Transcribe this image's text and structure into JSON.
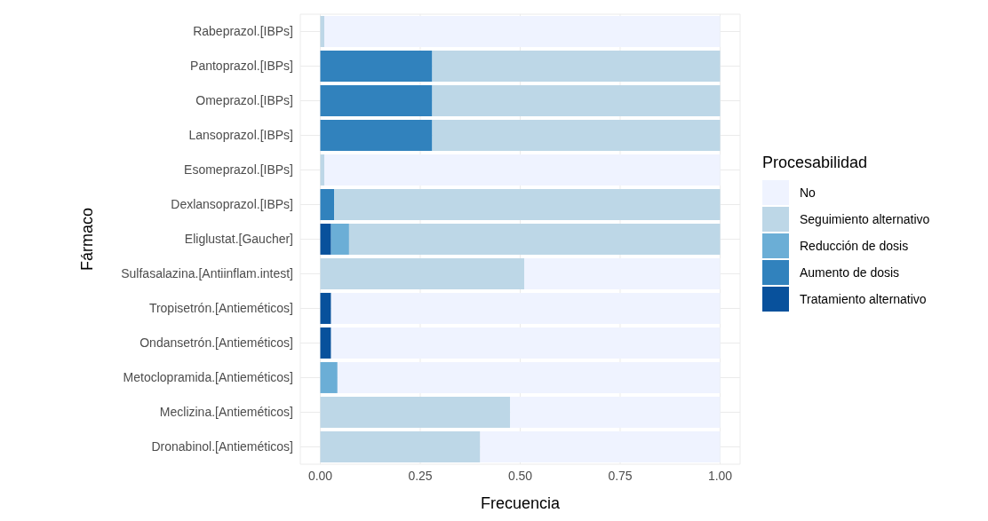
{
  "chart_data": {
    "type": "bar",
    "orientation": "horizontal",
    "stacked": true,
    "xlabel": "Frecuencia",
    "ylabel": "Fármaco",
    "legend_title": "Procesabilidad",
    "legend": "right",
    "grid": true,
    "categories": [
      "Rabeprazol.[IBPs]",
      "Pantoprazol.[IBPs]",
      "Omeprazol.[IBPs]",
      "Lansoprazol.[IBPs]",
      "Esomeprazol.[IBPs]",
      "Dexlansoprazol.[IBPs]",
      "Eliglustat.[Gaucher]",
      "Sulfasalazina.[Antiinflam.intest]",
      "Tropisetrón.[Antieméticos]",
      "Ondansetrón.[Antieméticos]",
      "Metoclopramida.[Antieméticos]",
      "Meclizina.[Antieméticos]",
      "Dronabinol.[Antieméticos]"
    ],
    "xlim": [
      -0.05,
      1.05
    ],
    "xticks": [
      {
        "value": 0,
        "label": "0.00"
      },
      {
        "value": 0.25,
        "label": "0.25"
      },
      {
        "value": 0.5,
        "label": "0.50"
      },
      {
        "value": 0.75,
        "label": "0.75"
      },
      {
        "value": 1,
        "label": "1.00"
      }
    ],
    "series": [
      {
        "name": "Tratamiento alternativo",
        "color": "#08519c",
        "values": [
          null,
          null,
          null,
          null,
          null,
          null,
          0.027,
          null,
          0.027,
          0.027,
          null,
          null,
          null
        ]
      },
      {
        "name": "Aumento de dosis",
        "color": "#3182bd",
        "values": [
          null,
          0.28,
          0.28,
          0.28,
          null,
          0.035,
          null,
          null,
          null,
          null,
          null,
          null,
          null
        ]
      },
      {
        "name": "Reducción de dosis",
        "color": "#6baed6",
        "values": [
          null,
          null,
          null,
          null,
          null,
          null,
          0.045,
          null,
          null,
          null,
          0.043,
          null,
          null
        ]
      },
      {
        "name": "Seguimiento alternativo",
        "color": "#bdd7e7",
        "values": [
          0.01,
          0.72,
          0.72,
          0.72,
          0.01,
          0.965,
          0.928,
          0.51,
          null,
          null,
          null,
          0.475,
          0.4
        ]
      },
      {
        "name": "No",
        "color": "#eff3ff",
        "values": [
          0.99,
          null,
          null,
          null,
          0.99,
          null,
          null,
          0.49,
          0.973,
          0.973,
          0.957,
          0.525,
          0.6
        ]
      }
    ]
  }
}
